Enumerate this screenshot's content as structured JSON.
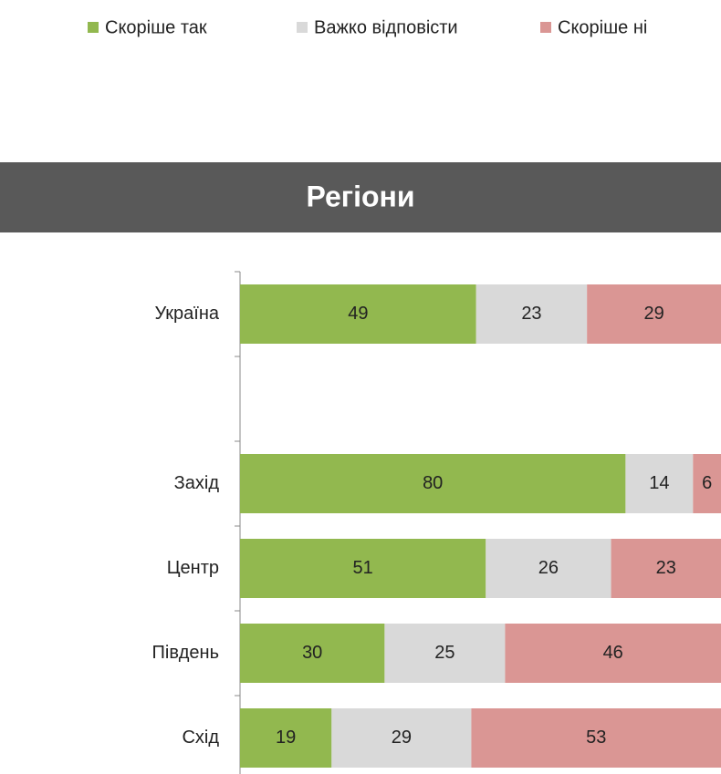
{
  "chart_data": {
    "type": "stacked_bar_horizontal",
    "title": "Регіони",
    "categories": [
      "Україна",
      null,
      "Захід",
      "Центр",
      "Південь",
      "Схід"
    ],
    "series": [
      {
        "name": "Скоріше так",
        "color": "#92b84f",
        "values": [
          49,
          null,
          80,
          51,
          30,
          19
        ]
      },
      {
        "name": "Важко відповісти",
        "color": "#d9d9d9",
        "values": [
          23,
          null,
          14,
          26,
          25,
          29
        ]
      },
      {
        "name": "Скоріше ні",
        "color": "#da9694",
        "values": [
          29,
          null,
          6,
          23,
          46,
          53
        ]
      }
    ],
    "xlim": [
      0,
      100
    ],
    "legend": "top"
  }
}
